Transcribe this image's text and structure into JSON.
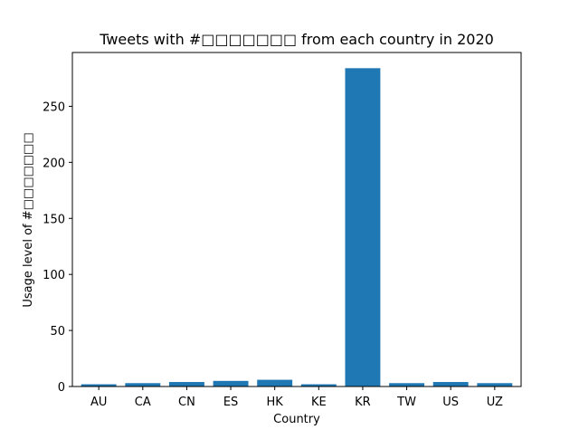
{
  "chart_data": {
    "type": "bar",
    "title": "Tweets with #□□□□□□□ from each country in 2020",
    "xlabel": "Country",
    "ylabel": "Usage level of #□□□□□□□",
    "categories": [
      "AU",
      "CA",
      "CN",
      "ES",
      "HK",
      "KE",
      "KR",
      "TW",
      "US",
      "UZ"
    ],
    "values": [
      2,
      3,
      4,
      5,
      6,
      2,
      284,
      3,
      4,
      3
    ],
    "ylim": [
      0,
      298
    ],
    "yticks": [
      0,
      50,
      100,
      150,
      200,
      250
    ],
    "grid": false,
    "bar_color": "#1f77b4"
  }
}
